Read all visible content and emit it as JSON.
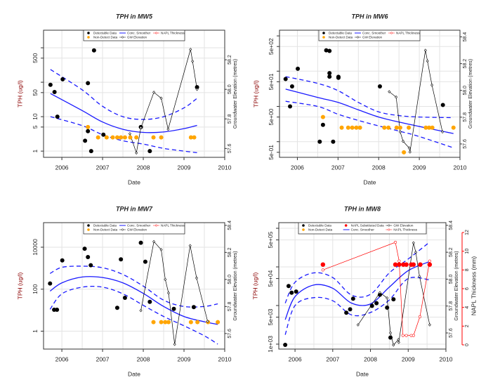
{
  "colors": {
    "detectable": "#000000",
    "non_detect": "#FFA500",
    "smoother": "#1a1aff",
    "gw": "#000000",
    "napl": "#ff0000",
    "grid": "#e3e3e3"
  },
  "chart_data": [
    {
      "type": "scatter",
      "title": "TPH in MW5",
      "xlabel": "Date",
      "ylabel": "TPH (ug/l)",
      "y2label": "Groundwater Elevation (metres)",
      "yscale": "log",
      "xlim": [
        2005.55,
        2010
      ],
      "ylim": [
        0.66,
        3240
      ],
      "y2lim": [
        57.54,
        58.4
      ],
      "x_ticks": [
        2006,
        2007,
        2008,
        2009,
        2010
      ],
      "x_tick_labels": [
        "2006",
        "2007",
        "2008",
        "2009",
        "2010"
      ],
      "y_ticks": [
        1,
        5,
        10,
        50,
        100,
        500,
        1000
      ],
      "y_tick_labels": [
        "1",
        "5",
        "10",
        "50",
        "",
        "500",
        ""
      ],
      "y2_ticks": [
        57.6,
        57.8,
        58.0,
        58.2
      ],
      "y2_tick_labels": [
        "57.6",
        "57.8",
        "58.0",
        "58.2"
      ],
      "grid": true,
      "legend": {
        "position": "top-center",
        "items": [
          "Detectable Data",
          "Non-Detect Data",
          "Conc. Smoother",
          "GW Elevation",
          "NAPL Thickness"
        ]
      },
      "detectable": [
        [
          2005.72,
          84
        ],
        [
          2005.82,
          52
        ],
        [
          2005.89,
          10
        ],
        [
          2006.02,
          122
        ],
        [
          2006.57,
          2
        ],
        [
          2006.64,
          94
        ],
        [
          2006.64,
          3.8
        ],
        [
          2006.72,
          1
        ],
        [
          2006.79,
          840
        ],
        [
          2007.02,
          3
        ],
        [
          2007.94,
          5
        ],
        [
          2008.16,
          1
        ],
        [
          2009.32,
          72
        ]
      ],
      "non_detect": [
        [
          2006.64,
          5
        ],
        [
          2006.89,
          2.5
        ],
        [
          2007.1,
          2.5
        ],
        [
          2007.25,
          2.5
        ],
        [
          2007.36,
          2.5
        ],
        [
          2007.45,
          2.5
        ],
        [
          2007.55,
          2.5
        ],
        [
          2007.68,
          2.5
        ],
        [
          2007.83,
          2.5
        ],
        [
          2008.25,
          2.5
        ],
        [
          2008.44,
          2.5
        ],
        [
          2009.17,
          2.5
        ],
        [
          2009.25,
          2.5
        ]
      ],
      "gw_elevation": [
        [
          2007.67,
          57.7
        ],
        [
          2007.83,
          57.57
        ],
        [
          2007.94,
          57.74
        ],
        [
          2008.26,
          57.98
        ],
        [
          2008.44,
          57.94
        ],
        [
          2008.61,
          57.73
        ],
        [
          2009.16,
          58.27
        ],
        [
          2009.21,
          58.19
        ],
        [
          2009.32,
          58.0
        ]
      ],
      "smoother": {
        "x": [
          2005.72,
          2006.5,
          2007,
          2007.5,
          2008,
          2008.5,
          2009,
          2009.32
        ],
        "center": [
          47,
          15,
          7,
          4.3,
          3.5,
          3.6,
          4.5,
          5.6
        ],
        "upper": [
          234,
          60,
          20,
          10,
          8.3,
          10,
          18,
          34
        ],
        "lower": [
          10,
          5.5,
          3,
          2.0,
          1.6,
          1.2,
          1.0,
          0.9
        ]
      }
    },
    {
      "type": "scatter",
      "title": "TPH in MW6",
      "xlabel": "Date",
      "ylabel": "TPH (ug/l)",
      "y2label": "Groundwater Elevation (metres)",
      "yscale": "log",
      "xlim": [
        2005.56,
        2010
      ],
      "ylim": [
        0.36,
        1450
      ],
      "y2lim": [
        57.5,
        58.45
      ],
      "x_ticks": [
        2006,
        2007,
        2008,
        2009,
        2010
      ],
      "x_tick_labels": [
        "2006",
        "2007",
        "2008",
        "2009",
        "2010"
      ],
      "y_ticks": [
        0.5,
        1,
        5,
        10,
        50,
        100,
        500,
        1000
      ],
      "y_tick_labels": [
        "5e-01",
        "",
        "5e+00",
        "",
        "5e+01",
        "",
        "5e+02",
        ""
      ],
      "y2_ticks": [
        57.6,
        57.8,
        58.0,
        58.2,
        58.4
      ],
      "y2_tick_labels": [
        "57.6",
        "57.8",
        "58.0",
        "58.2",
        "58.4"
      ],
      "grid": true,
      "legend": {
        "position": "top-center",
        "items": [
          "Detectable Data",
          "Non-Detect Data",
          "Conc. Smoother",
          "GW Elevation",
          "NAPL Thickness"
        ]
      },
      "detectable": [
        [
          2005.71,
          60
        ],
        [
          2005.87,
          37
        ],
        [
          2005.82,
          10
        ],
        [
          2006.01,
          117
        ],
        [
          2006.55,
          1
        ],
        [
          2006.63,
          3
        ],
        [
          2006.71,
          390
        ],
        [
          2006.79,
          375
        ],
        [
          2006.79,
          88
        ],
        [
          2006.79,
          70
        ],
        [
          2006.88,
          1
        ],
        [
          2007.01,
          69
        ],
        [
          2007.01,
          65
        ],
        [
          2008.03,
          37
        ],
        [
          2009.58,
          11
        ]
      ],
      "non_detect": [
        [
          2006.63,
          5
        ],
        [
          2007.09,
          2.5
        ],
        [
          2007.25,
          2.5
        ],
        [
          2007.35,
          2.5
        ],
        [
          2007.45,
          2.5
        ],
        [
          2007.54,
          2.5
        ],
        [
          2008.14,
          2.5
        ],
        [
          2008.24,
          2.5
        ],
        [
          2008.44,
          2.5
        ],
        [
          2008.53,
          2.5
        ],
        [
          2008.74,
          2.5
        ],
        [
          2009.16,
          2.5
        ],
        [
          2009.24,
          2.5
        ],
        [
          2009.32,
          2.5
        ],
        [
          2009.84,
          2.5
        ],
        [
          2008.62,
          0.5
        ]
      ],
      "gw_elevation": [
        [
          2008.26,
          57.99
        ],
        [
          2008.43,
          57.95
        ],
        [
          2008.53,
          57.69
        ],
        [
          2008.6,
          57.62
        ],
        [
          2008.75,
          57.57
        ],
        [
          2008.77,
          57.54
        ],
        [
          2009.15,
          58.3
        ],
        [
          2009.2,
          58.22
        ],
        [
          2009.31,
          58.04
        ],
        [
          2009.57,
          57.69
        ]
      ],
      "smoother": {
        "x": [
          2005.71,
          2006.5,
          2007,
          2007.5,
          2008,
          2008.5,
          2009,
          2009.84
        ],
        "center": [
          31,
          18,
          13,
          8,
          5,
          3.6,
          2.7,
          1.7
        ],
        "upper": [
          70,
          45,
          28,
          13,
          7,
          5.5,
          5,
          4.8
        ],
        "lower": [
          14,
          10,
          6,
          4,
          2.8,
          2,
          1.4,
          0.67
        ]
      }
    },
    {
      "type": "scatter",
      "title": "TPH in MW7",
      "xlabel": "Date",
      "ylabel": "TPH (ug/l)",
      "y2label": "Groundwater Elevation (metres)",
      "yscale": "log",
      "xlim": [
        2005.55,
        2010
      ],
      "ylim": [
        0.14,
        148000
      ],
      "y2lim": [
        57.485,
        58.42
      ],
      "x_ticks": [
        2006,
        2007,
        2008,
        2009,
        2010
      ],
      "x_tick_labels": [
        "2006",
        "2007",
        "2008",
        "2009",
        "2010"
      ],
      "y_ticks": [
        1,
        100,
        10000
      ],
      "y_tick_labels": [
        "1",
        "100",
        "10000"
      ],
      "y2_ticks": [
        57.6,
        57.8,
        58.0,
        58.2,
        58.4
      ],
      "y2_tick_labels": [
        "57.6",
        "57.8",
        "58.0",
        "58.2",
        "58.4"
      ],
      "grid": true,
      "legend": {
        "position": "top-center",
        "items": [
          "Detectable Data",
          "Non-Detect Data",
          "Conc. Smoother",
          "GW Elevation",
          "NAPL Thickness"
        ]
      },
      "detectable": [
        [
          2005.71,
          186
        ],
        [
          2005.81,
          10.5
        ],
        [
          2005.88,
          10.5
        ],
        [
          2006.01,
          2360
        ],
        [
          2006.56,
          8500
        ],
        [
          2006.64,
          3400
        ],
        [
          2006.71,
          1380
        ],
        [
          2007.36,
          13
        ],
        [
          2007.45,
          2640
        ],
        [
          2007.55,
          39
        ],
        [
          2007.94,
          16300
        ],
        [
          2008.05,
          2040
        ],
        [
          2008.16,
          25
        ],
        [
          2008.75,
          11.5
        ],
        [
          2009.24,
          14
        ]
      ],
      "non_detect": [
        [
          2008.25,
          2.7
        ],
        [
          2008.44,
          2.7
        ],
        [
          2008.54,
          2.7
        ],
        [
          2008.62,
          2.7
        ],
        [
          2009.17,
          2.7
        ],
        [
          2009.33,
          2.7
        ],
        [
          2009.59,
          2.7
        ],
        [
          2009.83,
          2.7
        ]
      ],
      "gw_elevation": [
        [
          2007.94,
          57.77
        ],
        [
          2008.26,
          58.28
        ],
        [
          2008.44,
          58.22
        ],
        [
          2008.54,
          58.0
        ],
        [
          2008.62,
          57.9
        ],
        [
          2008.77,
          57.52
        ],
        [
          2009.15,
          58.25
        ],
        [
          2009.31,
          58.01
        ],
        [
          2009.58,
          57.69
        ]
      ],
      "smoother": {
        "x": [
          2005.71,
          2006,
          2006.5,
          2007,
          2007.5,
          2008,
          2008.5,
          2009,
          2009.5,
          2009.83
        ],
        "center": [
          81,
          200,
          380,
          360,
          200,
          63,
          15,
          5,
          2.8,
          2.1
        ],
        "upper": [
          560,
          1100,
          1250,
          1050,
          500,
          140,
          30,
          15,
          15,
          20
        ],
        "lower": [
          11,
          60,
          125,
          125,
          60,
          17,
          5,
          1.8,
          0.6,
          0.24
        ]
      }
    },
    {
      "type": "scatter",
      "title": "TPH in MW8",
      "xlabel": "Date",
      "ylabel": "TPH (ug/l)",
      "y2label": "Groundwater Elevation (metres)",
      "y3label": "NAPL Thickness (mm)",
      "yscale": "log",
      "xlim": [
        2005.57,
        2010
      ],
      "ylim": [
        745,
        1400000
      ],
      "y2lim": [
        57.48,
        58.42
      ],
      "y3lim": [
        -0.45,
        13.05
      ],
      "x_ticks": [
        2006,
        2007,
        2008,
        2009,
        2010
      ],
      "x_tick_labels": [
        "2006",
        "2007",
        "2008",
        "2009",
        "2010"
      ],
      "y_ticks": [
        1000,
        5000,
        10000,
        50000,
        100000,
        500000,
        1000000
      ],
      "y_tick_labels": [
        "1e+03",
        "5e+03",
        "",
        "5e+04",
        "",
        "5e+05",
        ""
      ],
      "y2_ticks": [
        57.6,
        57.8,
        58.0,
        58.2,
        58.4
      ],
      "y2_tick_labels": [
        "57.6",
        "57.8",
        "58.0",
        "58.2",
        "58.4"
      ],
      "y3_ticks": [
        0,
        2,
        4,
        6,
        8,
        10,
        12
      ],
      "y3_tick_labels": [
        "0",
        "2",
        "4",
        "6",
        "8",
        "10",
        "12"
      ],
      "grid": true,
      "legend": {
        "position": "top-center",
        "items": [
          "Detectable Data",
          "Non-Detect Data",
          "NAPL Substituted Data",
          "Conc. Smoother",
          "GW Elevation",
          "NAPL Thickness"
        ]
      },
      "detectable": [
        [
          2005.74,
          960
        ],
        [
          2005.83,
          32000
        ],
        [
          2005.91,
          21500
        ],
        [
          2006.03,
          23000
        ],
        [
          2007.36,
          6500
        ],
        [
          2007.46,
          8000
        ],
        [
          2007.54,
          15000
        ],
        [
          2008.04,
          9800
        ],
        [
          2008.16,
          11500
        ],
        [
          2008.25,
          19000
        ],
        [
          2008.44,
          8800
        ],
        [
          2008.53,
          1480
        ],
        [
          2008.61,
          14500
        ]
      ],
      "non_detect": [],
      "napl_substituted": [
        [
          2006.74,
          115000
        ],
        [
          2008.66,
          115000
        ],
        [
          2008.76,
          115000
        ],
        [
          2008.87,
          115000
        ],
        [
          2008.95,
          115000
        ],
        [
          2009.08,
          115000
        ],
        [
          2009.14,
          115000
        ],
        [
          2009.32,
          115000
        ],
        [
          2009.57,
          115000
        ]
      ],
      "gw_elevation": [
        [
          2007.67,
          57.66
        ],
        [
          2008.25,
          57.9
        ],
        [
          2008.44,
          57.86
        ],
        [
          2008.53,
          57.6
        ],
        [
          2008.61,
          57.51
        ],
        [
          2008.74,
          57.55
        ],
        [
          2008.75,
          57.53
        ],
        [
          2009.14,
          58.27
        ],
        [
          2009.2,
          58.2
        ],
        [
          2009.3,
          58.02
        ],
        [
          2009.57,
          57.66
        ]
      ],
      "napl_thickness": [
        [
          2006.74,
          8
        ],
        [
          2008.66,
          10.95
        ],
        [
          2008.76,
          8.95
        ],
        [
          2008.86,
          1.0
        ],
        [
          2008.95,
          1.0
        ],
        [
          2009.08,
          1.0
        ],
        [
          2009.14,
          1.0
        ],
        [
          2009.31,
          3.0
        ],
        [
          2009.57,
          8.95
        ]
      ],
      "smoother": {
        "x": [
          2005.74,
          2006,
          2006.5,
          2007,
          2007.5,
          2008,
          2008.5,
          2009,
          2009.57
        ],
        "center": [
          4300,
          17000,
          34000,
          28000,
          11500,
          11000,
          30000,
          80000,
          138000
        ],
        "upper": [
          11500,
          40000,
          70000,
          53000,
          18600,
          19500,
          70000,
          160000,
          440000
        ],
        "lower": [
          1750,
          10000,
          16000,
          13300,
          5700,
          6600,
          14000,
          50000,
          46000
        ]
      }
    }
  ]
}
